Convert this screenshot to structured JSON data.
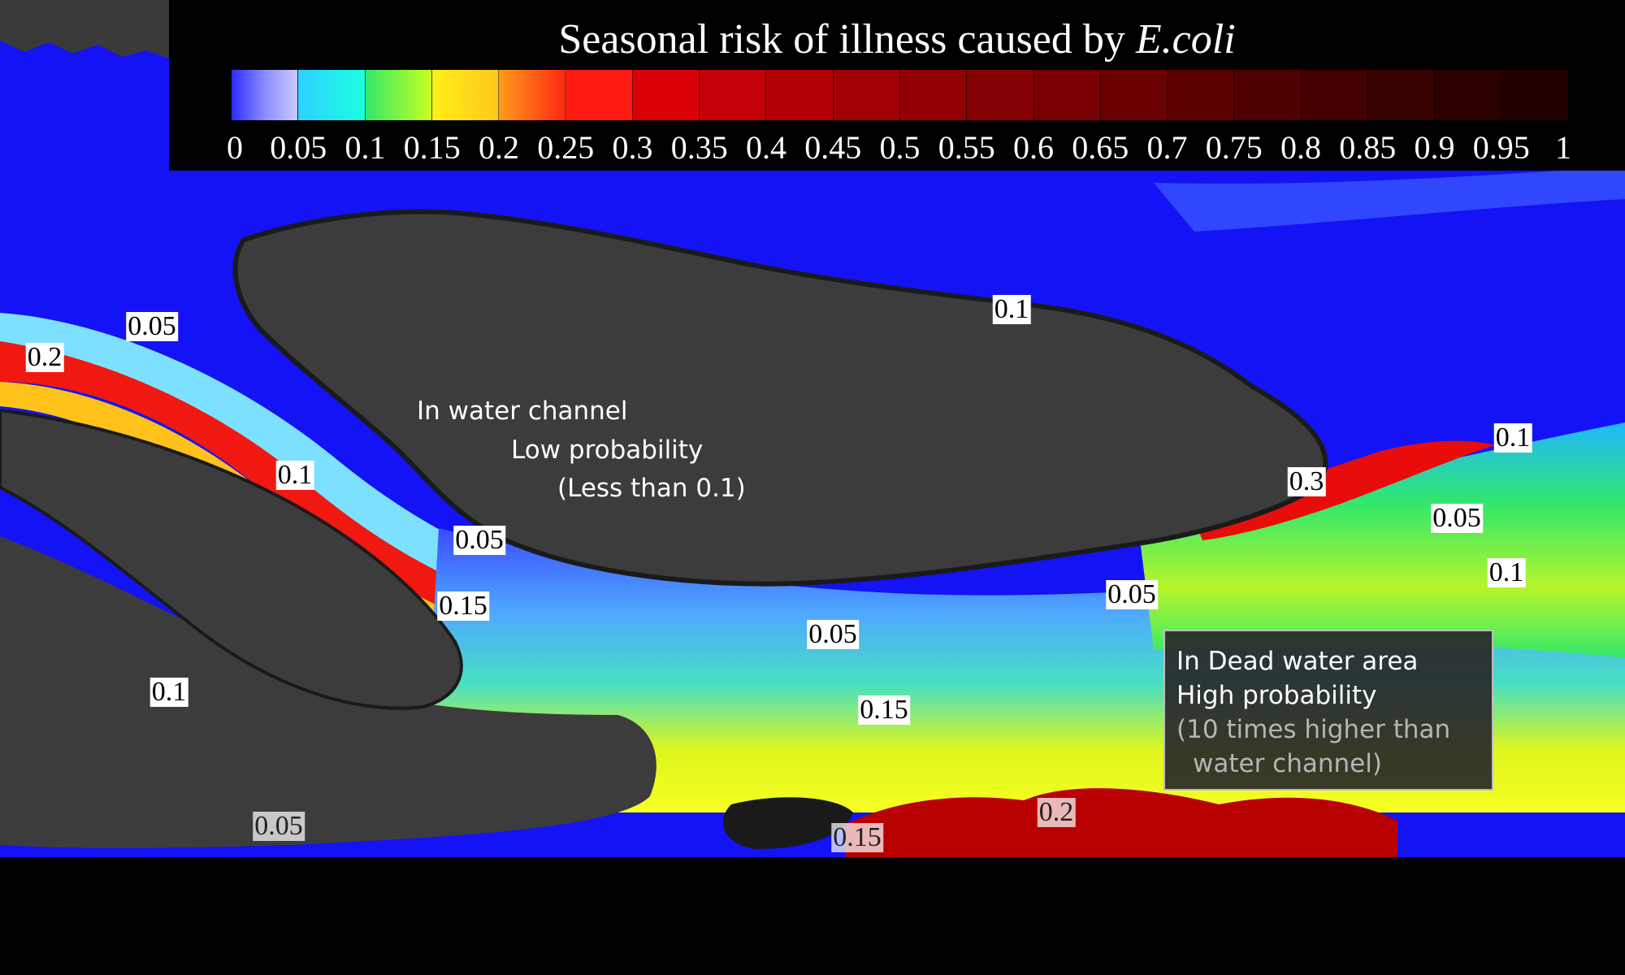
{
  "legend": {
    "title_prefix": "Seasonal risk of illness caused by",
    "title_species": "E.coli",
    "ticks": [
      "0",
      "0.05",
      "0.1",
      "0.15",
      "0.2",
      "0.25",
      "0.3",
      "0.35",
      "0.4",
      "0.45",
      "0.5",
      "0.55",
      "0.6",
      "0.65",
      "0.7",
      "0.75",
      "0.8",
      "0.85",
      "0.9",
      "0.95",
      "1"
    ],
    "colormap": "blue-cyan-green-yellow-orange-red-darkred",
    "colors": [
      "#2a2cff",
      "#1fb7ff",
      "#33e86a",
      "#f2ff1a",
      "#ff9a1a",
      "#ff1a12",
      "#dc0008",
      "#c20008",
      "#b00006",
      "#a10005",
      "#930004",
      "#850003",
      "#780002",
      "#6a0002",
      "#5c0001",
      "#4f0001",
      "#430001",
      "#370001",
      "#2c0000",
      "#220000"
    ]
  },
  "contour_labels": [
    {
      "id": "w-005",
      "text": "0.05"
    },
    {
      "id": "w-02",
      "text": "0.2"
    },
    {
      "id": "w-01",
      "text": "0.1"
    },
    {
      "id": "c-005",
      "text": "0.05"
    },
    {
      "id": "c-015",
      "text": "0.15"
    },
    {
      "id": "n-01",
      "text": "0.1"
    },
    {
      "id": "m-005",
      "text": "0.05"
    },
    {
      "id": "m-015",
      "text": "0.15"
    },
    {
      "id": "sw-01",
      "text": "0.1"
    },
    {
      "id": "bl-005",
      "text": "0.05"
    },
    {
      "id": "b-015",
      "text": "0.15"
    },
    {
      "id": "b-02",
      "text": "0.2"
    },
    {
      "id": "e-03",
      "text": "0.3"
    },
    {
      "id": "e-01a",
      "text": "0.1"
    },
    {
      "id": "e-005",
      "text": "0.05"
    },
    {
      "id": "e-01b",
      "text": "0.1"
    },
    {
      "id": "d-005",
      "text": "0.05"
    }
  ],
  "annotations": {
    "channel": {
      "line1": "In water channel",
      "line2": "Low probability",
      "line3": "(Less than 0.1)"
    },
    "dead_water": {
      "line1": "In Dead water area",
      "line2": "High probability",
      "line3": "(10 times higher than",
      "line4": "water channel)"
    }
  }
}
